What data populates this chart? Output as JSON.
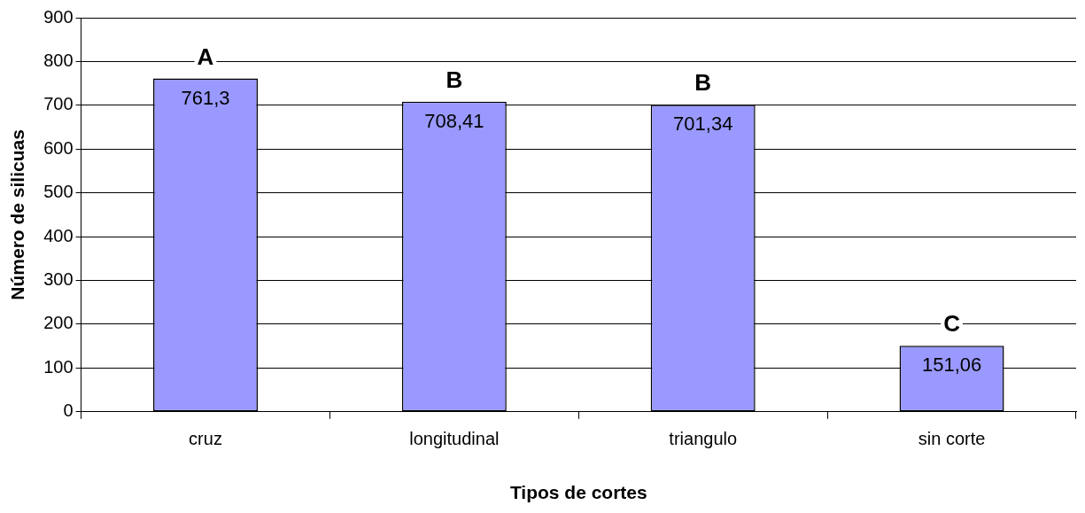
{
  "chart_data": {
    "type": "bar",
    "xlabel": "Tipos de cortes",
    "ylabel": "Número de silicuas",
    "categories": [
      "cruz",
      "longitudinal",
      "triangulo",
      "sin corte"
    ],
    "values": [
      761.3,
      708.41,
      701.34,
      151.06
    ],
    "value_labels": [
      "761,3",
      "708,41",
      "701,34",
      "151,06"
    ],
    "color": "#9999ff",
    "ylim": [
      0,
      900
    ],
    "yticks": [
      0,
      100,
      200,
      300,
      400,
      500,
      600,
      700,
      800,
      900
    ],
    "grid": "y",
    "legend": false,
    "annotations": [
      {
        "text": "A",
        "x": "cruz",
        "y": 761.3
      },
      {
        "text": "B",
        "x": "longitudinal",
        "y": 708.41
      },
      {
        "text": "B",
        "x": "triangulo",
        "y": 701.34
      },
      {
        "text": "C",
        "x": "sin corte",
        "y": 151.06
      }
    ]
  }
}
